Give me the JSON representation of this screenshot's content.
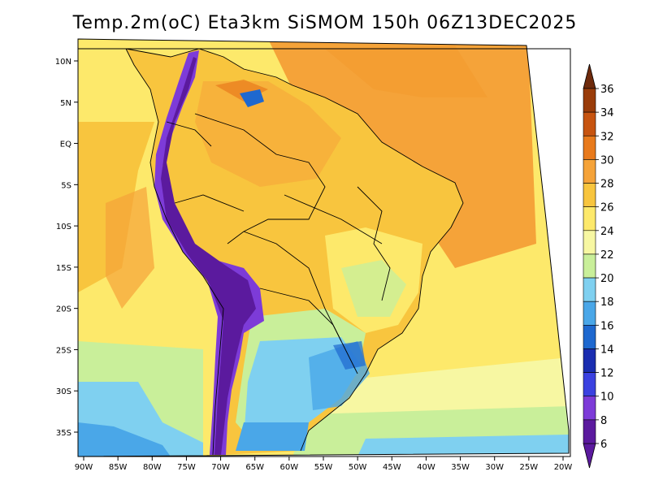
{
  "title": "Temp.2m(oC) Eta3km SiSMOM 150h 06Z13DEC2025",
  "map": {
    "variable": "2 m air temperature",
    "units": "oC",
    "region": "South America",
    "lon_range": [
      -91,
      -20
    ],
    "lat_range": [
      -38,
      11
    ],
    "x_ticks": [
      "90W",
      "85W",
      "80W",
      "75W",
      "70W",
      "65W",
      "60W",
      "55W",
      "50W",
      "45W",
      "40W",
      "35W",
      "30W",
      "25W",
      "20W"
    ],
    "x_tick_values": [
      -90,
      -85,
      -80,
      -75,
      -70,
      -65,
      -60,
      -55,
      -50,
      -45,
      -40,
      -35,
      -30,
      -25,
      -20
    ],
    "y_ticks": [
      "10N",
      "5N",
      "EQ",
      "5S",
      "10S",
      "15S",
      "20S",
      "25S",
      "30S",
      "35S"
    ],
    "y_tick_values": [
      10,
      5,
      0,
      -5,
      -10,
      -15,
      -20,
      -25,
      -30,
      -35
    ]
  },
  "colorbar": {
    "labels": [
      "36",
      "34",
      "32",
      "30",
      "28",
      "26",
      "24",
      "22",
      "20",
      "18",
      "16",
      "14",
      "12",
      "10",
      "8",
      "6"
    ],
    "colors": [
      "#6e2a0c",
      "#9a3c0a",
      "#c75410",
      "#e87a1c",
      "#f5a339",
      "#f8c53e",
      "#fde96b",
      "#f7f7a2",
      "#c9ef9a",
      "#7fd0f0",
      "#4aa7e8",
      "#1e68cf",
      "#1a2db0",
      "#3b41e0",
      "#7d3bd8",
      "#5b1a9e"
    ],
    "top_color": "#6e2a0c",
    "bottom_color": "#5b1a9e"
  },
  "palette": {
    "ocean_warm": "#f5a339",
    "ocean_mild": "#f8c53e",
    "ocean_cool": "#fde96b",
    "ocean_cold": "#c9ef9a",
    "land_base": "#f8c53e",
    "andes_cold": "#5b1a9e",
    "andes_cool": "#7d3bd8",
    "south_cool": "#7fd0f0",
    "south_cold": "#4aa7e8",
    "boundary": "#000000"
  }
}
